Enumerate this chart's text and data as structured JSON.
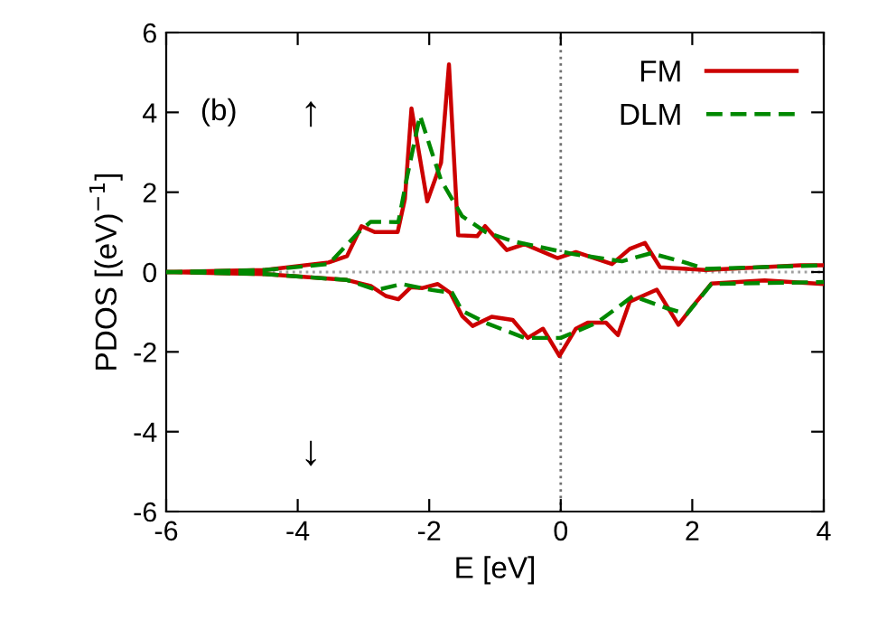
{
  "chart_data": {
    "type": "line",
    "xlabel": "E [eV]",
    "ylabel": "PDOS [(eV)$^{−1}$]",
    "xlim": [
      -6,
      4
    ],
    "ylim": [
      -6,
      6
    ],
    "xticks": [
      -6,
      -4,
      -2,
      0,
      2,
      4
    ],
    "yticks": [
      -6,
      -4,
      -2,
      0,
      2,
      4,
      6
    ],
    "grid": false,
    "legend": "top right",
    "annotations": [
      "(b)",
      "↑",
      "↓"
    ],
    "ref_lines": [
      {
        "axis": "y",
        "value": 0,
        "color": "#a0a0a0",
        "line_style": "dotted"
      },
      {
        "axis": "x",
        "value": 0,
        "color": "#707070",
        "line_style": "dotted"
      }
    ],
    "series": [
      {
        "name": "FM",
        "color": "#cc0000",
        "line_style": "solid",
        "x": [
          -6,
          -4.5,
          -3.53,
          -3.25,
          -3.03,
          -2.83,
          -2.48,
          -2.37,
          -2.27,
          -2.03,
          -1.82,
          -1.7,
          -1.56,
          -1.27,
          -1.15,
          -0.82,
          -0.55,
          -0.05,
          0.23,
          0.78,
          1.05,
          1.28,
          1.51,
          2.2,
          3.65,
          4
        ],
        "values": [
          0,
          0.05,
          0.24,
          0.4,
          1.15,
          1.0,
          1.0,
          1.83,
          4.1,
          1.77,
          2.74,
          5.2,
          0.92,
          0.9,
          1.15,
          0.55,
          0.7,
          0.35,
          0.5,
          0.2,
          0.58,
          0.73,
          0.12,
          0.05,
          0.17,
          0.17
        ]
      },
      {
        "color": "#cc0000",
        "line_style": "solid",
        "x": [
          -6,
          -4.5,
          -3.25,
          -2.89,
          -2.66,
          -2.47,
          -2.28,
          -2.1,
          -1.87,
          -1.68,
          -1.5,
          -1.34,
          -1.05,
          -0.73,
          -0.5,
          -0.27,
          -0.02,
          0.23,
          0.41,
          0.69,
          0.87,
          1.05,
          1.46,
          1.79,
          2.01,
          2.29,
          3.1,
          4
        ],
        "values": [
          0,
          -0.05,
          -0.2,
          -0.35,
          -0.6,
          -0.68,
          -0.38,
          -0.4,
          -0.3,
          -0.52,
          -1.1,
          -1.35,
          -1.12,
          -1.2,
          -1.65,
          -1.42,
          -2.1,
          -1.42,
          -1.27,
          -1.27,
          -1.58,
          -0.74,
          -0.44,
          -1.32,
          -0.85,
          -0.29,
          -0.21,
          -0.3
        ]
      },
      {
        "name": "DLM",
        "color": "#008800",
        "line_style": "dashed",
        "x": [
          -6,
          -4.5,
          -3.53,
          -3.07,
          -2.89,
          -2.47,
          -2.33,
          -2.14,
          -1.96,
          -1.82,
          -1.5,
          -1.14,
          -0.73,
          0.19,
          0.93,
          1.37,
          1.83,
          2.2,
          4
        ],
        "values": [
          0,
          0.05,
          0.2,
          1.0,
          1.26,
          1.25,
          2.44,
          3.92,
          3.0,
          2.3,
          1.4,
          1.0,
          0.77,
          0.45,
          0.27,
          0.47,
          0.27,
          0.08,
          0.17
        ]
      },
      {
        "color": "#008800",
        "line_style": "dashed",
        "x": [
          -6,
          -4.5,
          -3.25,
          -2.8,
          -2.42,
          -1.96,
          -1.65,
          -1.5,
          -1.1,
          -0.55,
          0,
          0.55,
          1.1,
          1.6,
          1.92,
          2.29,
          4
        ],
        "values": [
          0,
          -0.05,
          -0.2,
          -0.45,
          -0.3,
          -0.45,
          -0.52,
          -0.97,
          -1.3,
          -1.65,
          -1.65,
          -1.27,
          -0.6,
          -0.9,
          -1.05,
          -0.3,
          -0.25
        ]
      }
    ]
  }
}
